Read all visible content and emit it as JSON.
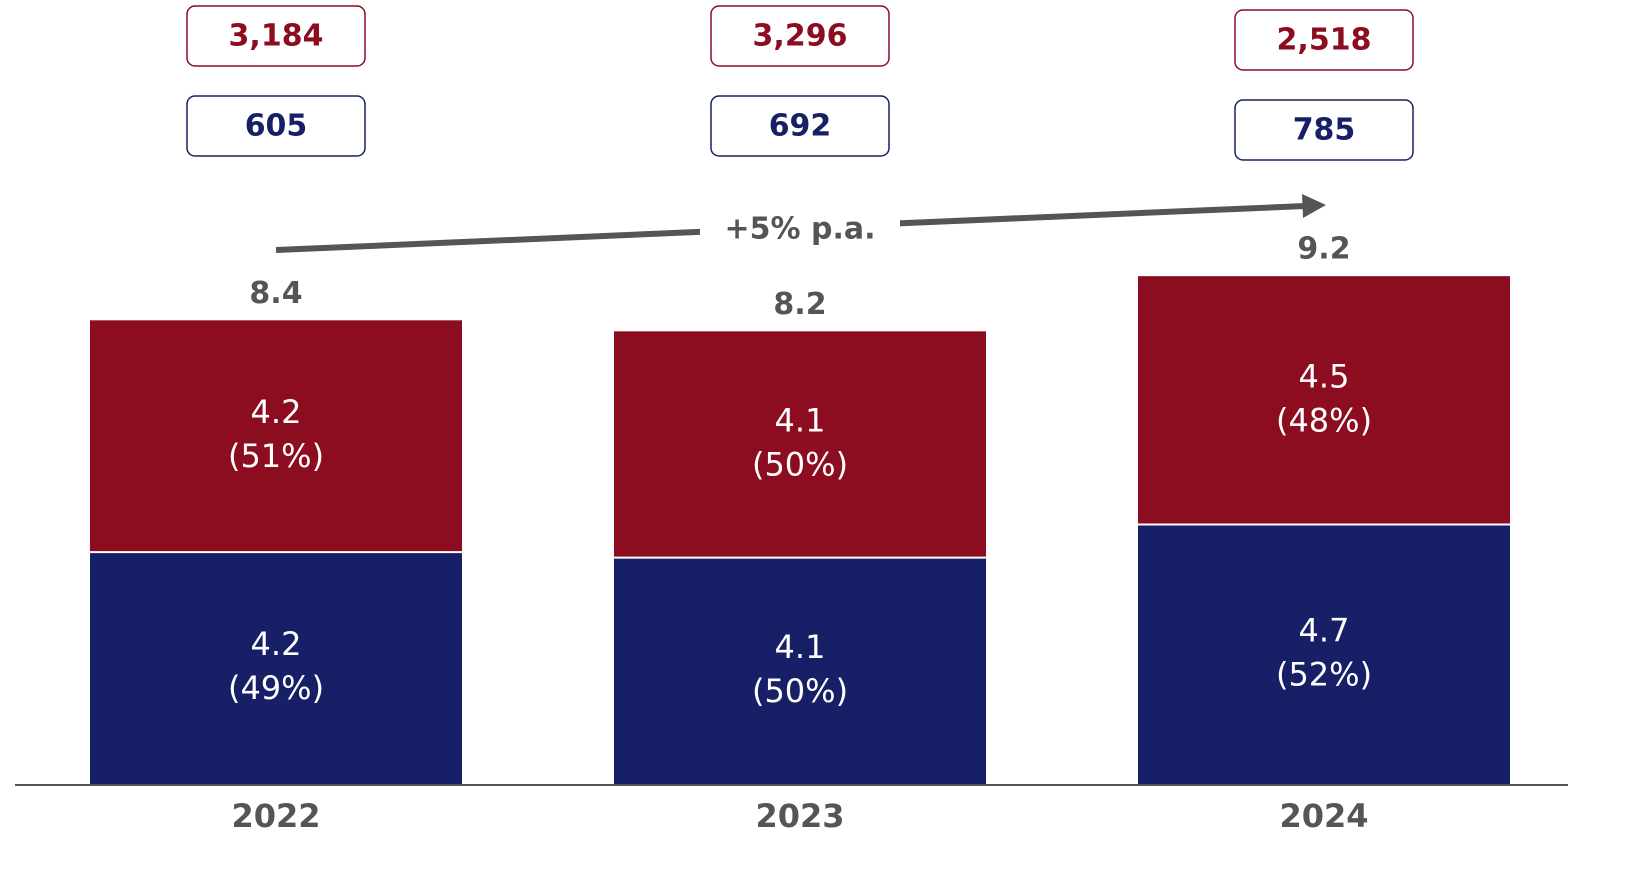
{
  "chart_data": {
    "type": "stacked-bar",
    "categories": [
      "2022",
      "2023",
      "2024"
    ],
    "series": [
      {
        "color": "#172067",
        "values": [
          4.2,
          4.1,
          4.7
        ],
        "share_labels": [
          "(49%)",
          "(50%)",
          "(52%)"
        ]
      },
      {
        "color": "#8c0c20",
        "values": [
          4.2,
          4.1,
          4.5
        ],
        "share_labels": [
          "(51%)",
          "(50%)",
          "(48%)"
        ]
      }
    ],
    "totals": [
      8.4,
      8.2,
      9.2
    ],
    "top_boxes": {
      "color": "#8c0c20",
      "labels": [
        "3,184",
        "3,296",
        "2,518"
      ]
    },
    "bottom_boxes": {
      "color": "#172067",
      "labels": [
        "605",
        "692",
        "785"
      ]
    },
    "annotation": "+5% p.a."
  }
}
